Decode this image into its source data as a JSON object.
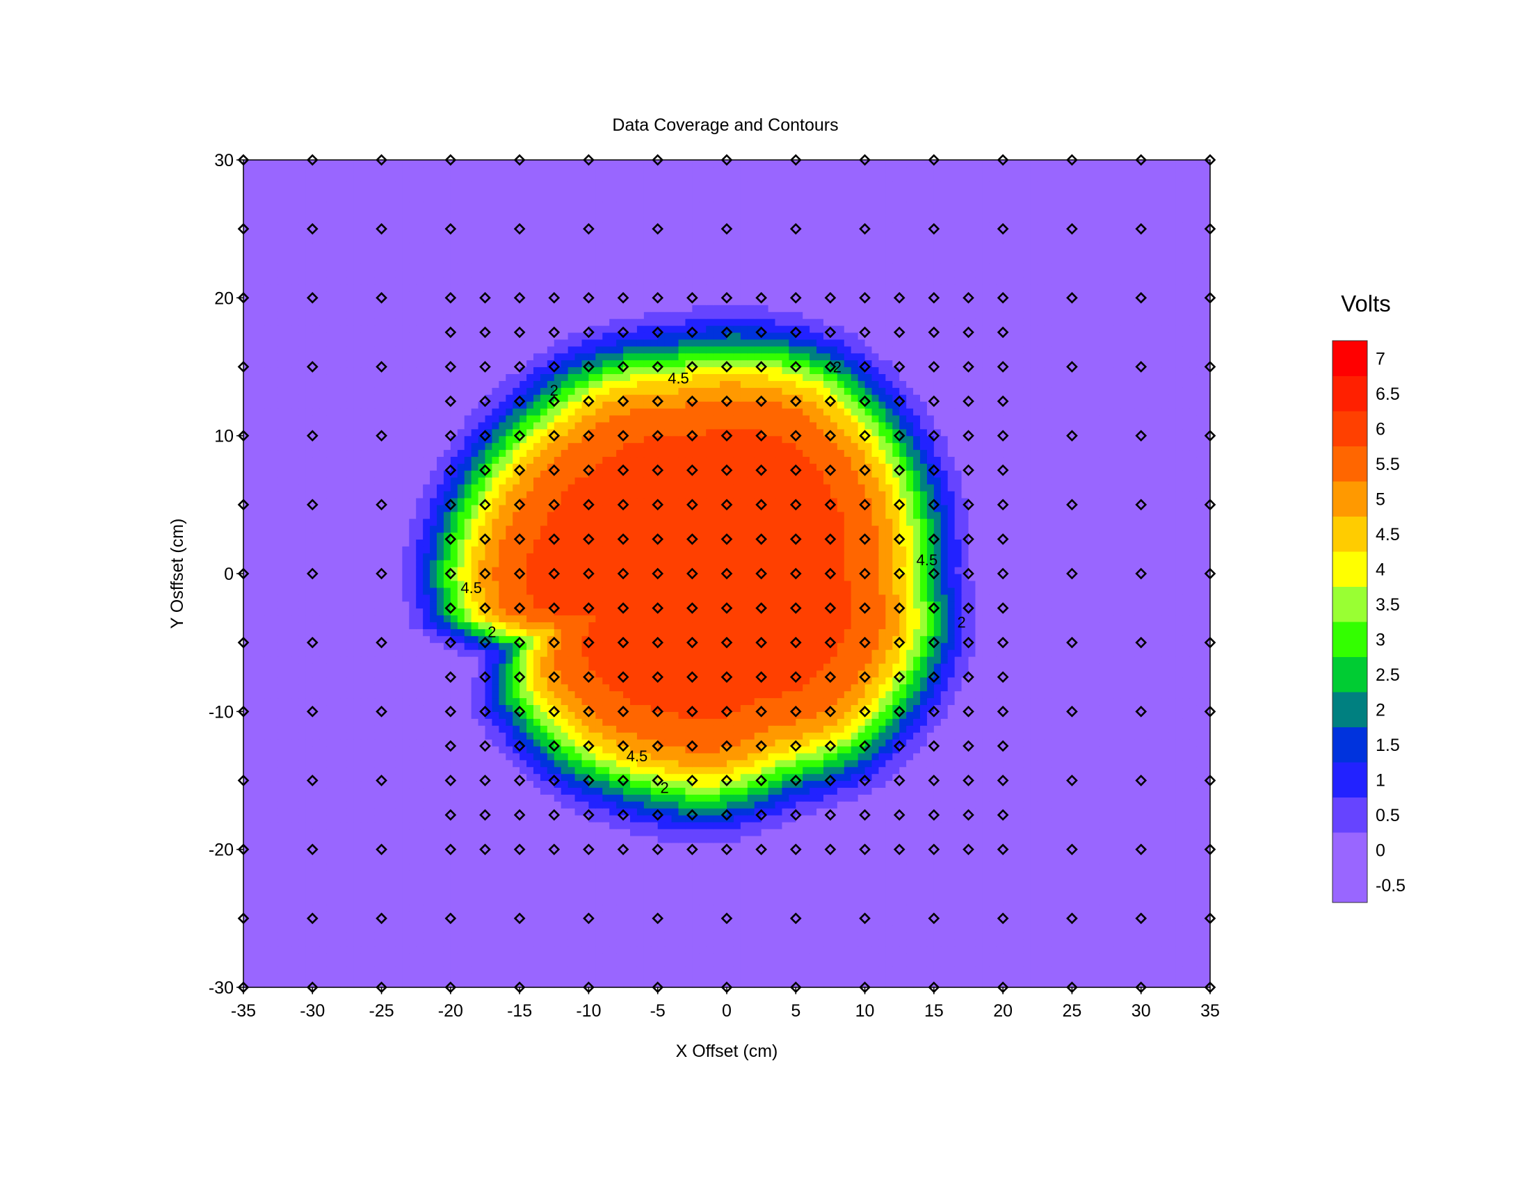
{
  "chart_data": {
    "type": "heatmap",
    "subtype": "filled-contour",
    "title": "Data Coverage and Contours",
    "xlabel": "X Offset (cm)",
    "ylabel": "Y Osffset (cm)",
    "xlim": [
      -35,
      35
    ],
    "ylim": [
      -30,
      30
    ],
    "x_ticks": [
      "-35",
      "-30",
      "-25",
      "-20",
      "-15",
      "-10",
      "-5",
      "0",
      "5",
      "10",
      "15",
      "20",
      "25",
      "30",
      "35"
    ],
    "y_ticks": [
      "30",
      "20",
      "10",
      "0",
      "-10",
      "-20",
      "-30"
    ],
    "colorbar": {
      "title": "Volts",
      "tick_labels": [
        "7",
        "6.5",
        "6",
        "5.5",
        "5",
        "4.5",
        "4",
        "3.5",
        "3",
        "2.5",
        "2",
        "1.5",
        "1",
        "0.5",
        "0",
        "-0.5"
      ],
      "levels": [
        -0.5,
        0,
        0.5,
        1,
        1.5,
        2,
        2.5,
        3,
        3.5,
        4,
        4.5,
        5,
        5.5,
        6,
        6.5,
        7,
        7.5
      ],
      "colors": [
        "#9966ff",
        "#9966ff",
        "#6644ff",
        "#2222ff",
        "#0033dd",
        "#008080",
        "#00cc33",
        "#33ff00",
        "#99ff33",
        "#ffff00",
        "#ffcc00",
        "#ff9900",
        "#ff6600",
        "#ff4000",
        "#ff2000",
        "#ff0000"
      ]
    },
    "contour_labels": [
      {
        "text": "4.5",
        "x": -3.5,
        "y": 14.2
      },
      {
        "text": "2",
        "x": -12.5,
        "y": 13.3
      },
      {
        "text": "2",
        "x": 8,
        "y": 15
      },
      {
        "text": "4.5",
        "x": -18.5,
        "y": -1
      },
      {
        "text": "2",
        "x": -17,
        "y": -4.2
      },
      {
        "text": "4.5",
        "x": 14.5,
        "y": 1
      },
      {
        "text": "2",
        "x": 17,
        "y": -3.5
      },
      {
        "text": "4.5",
        "x": -6.5,
        "y": -13.2
      },
      {
        "text": "2",
        "x": -4.5,
        "y": -15.5
      }
    ],
    "field_model": {
      "plateau_value": 6.2,
      "center": [
        -1,
        0
      ],
      "edge_radius_by_angle_deg": [
        [
          0,
          15.5
        ],
        [
          20,
          16
        ],
        [
          40,
          16.5
        ],
        [
          60,
          17
        ],
        [
          80,
          16.5
        ],
        [
          100,
          16
        ],
        [
          120,
          17
        ],
        [
          140,
          17.5
        ],
        [
          160,
          18.5
        ],
        [
          180,
          19.5
        ],
        [
          190,
          19
        ],
        [
          200,
          15
        ],
        [
          210,
          17
        ],
        [
          230,
          17
        ],
        [
          250,
          16.5
        ],
        [
          270,
          16.5
        ],
        [
          290,
          15.5
        ],
        [
          310,
          16.5
        ],
        [
          330,
          16.5
        ],
        [
          345,
          16.5
        ]
      ],
      "edge_width": 1.7
    },
    "coarse_grid": {
      "x": [
        -35,
        -30,
        -25,
        -20,
        -15,
        -10,
        -5,
        0,
        5,
        10,
        15,
        20,
        25,
        30,
        35
      ],
      "y": [
        -30,
        -25,
        -20,
        -15,
        -10,
        -5,
        0,
        5,
        10,
        15,
        20,
        25,
        30
      ]
    },
    "fine_grid": {
      "x_from": -20,
      "x_to": 20,
      "y_from": -20,
      "y_to": 20,
      "step": 2.5
    }
  }
}
